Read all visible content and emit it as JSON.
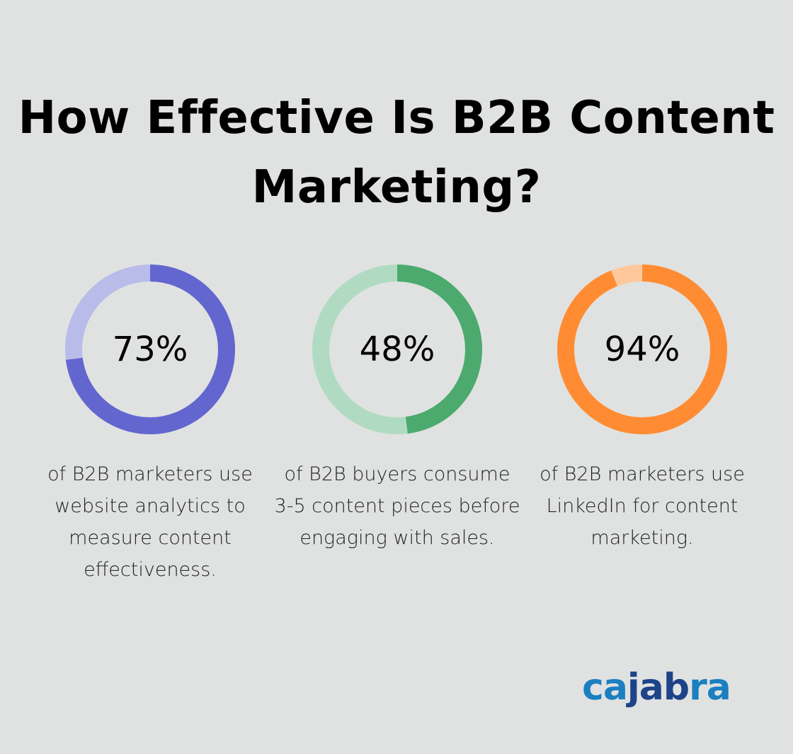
{
  "title": "How Effective Is B2B Content Marketing?",
  "chart_data": [
    {
      "type": "pie",
      "variant": "donut",
      "value": 73,
      "label": "73%",
      "description": "of B2B marketers use website analytics to measure content effectiveness.",
      "colors": {
        "fill": "#6366cf",
        "track": "#b9bce9"
      }
    },
    {
      "type": "pie",
      "variant": "donut",
      "value": 48,
      "label": "48%",
      "description": "of B2B buyers consume 3-5 content pieces before engaging with sales.",
      "colors": {
        "fill": "#4caa6e",
        "track": "#b0dbc2"
      }
    },
    {
      "type": "pie",
      "variant": "donut",
      "value": 94,
      "label": "94%",
      "description": "of B2B marketers use LinkedIn for content marketing.",
      "colors": {
        "fill": "#ff8c33",
        "track": "#ffc89c"
      }
    }
  ],
  "logo": {
    "text": "cajabra",
    "parts": [
      "ca",
      "jab",
      "ra"
    ],
    "colors": [
      "#1b7fc0",
      "#1d4389",
      "#1b7fc0"
    ]
  }
}
